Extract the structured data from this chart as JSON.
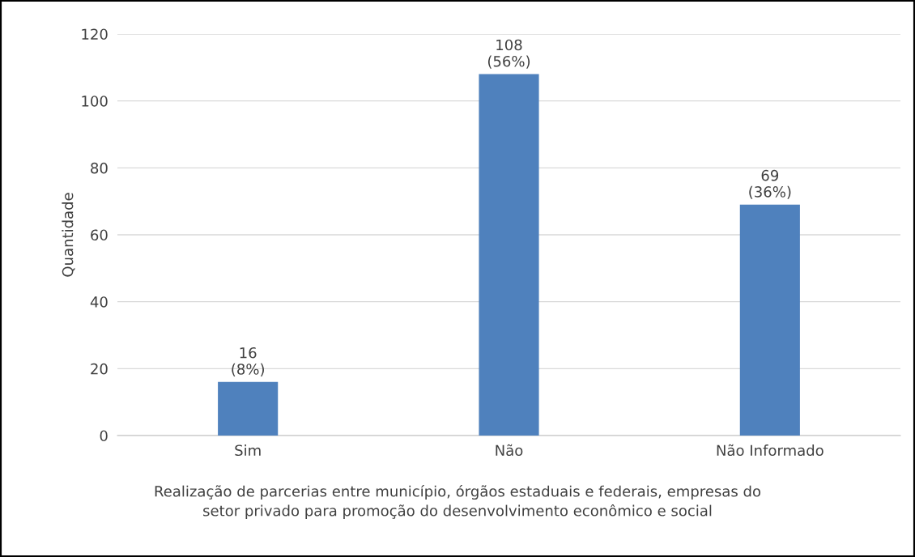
{
  "chart_data": {
    "type": "bar",
    "xlabel": "Realização de parcerias entre município, órgãos estaduais e federais, empresas do\nsetor privado para promoção do desenvolvimento econômico e social",
    "ylabel": "Quantidade",
    "categories": [
      "Sim",
      "Não",
      "Não Informado"
    ],
    "values": [
      16,
      108,
      69
    ],
    "value_labels": [
      "16\n(8%)",
      "108\n(56%)",
      "69\n(36%)"
    ],
    "color": "#4f81bd",
    "ylim": [
      0,
      120
    ],
    "yticks": [
      0,
      20,
      40,
      60,
      80,
      100,
      120
    ],
    "grid": "y",
    "legend": false
  }
}
